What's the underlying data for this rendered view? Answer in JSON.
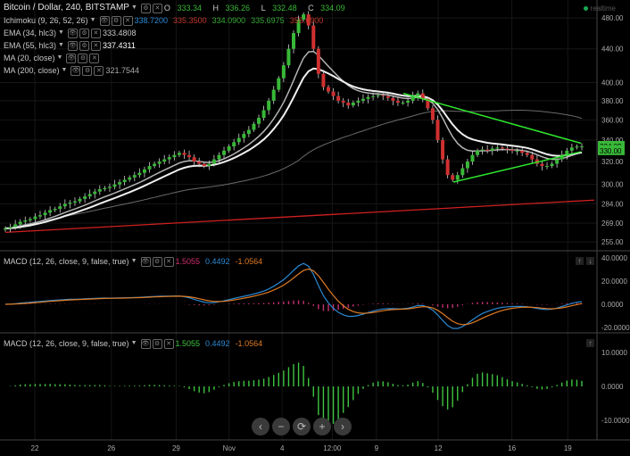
{
  "title": "Bitcoin / Dollar, 240, BITSTAMP",
  "ohlc": [
    {
      "k": "O",
      "v": "333.34"
    },
    {
      "k": "H",
      "v": "336.26"
    },
    {
      "k": "L",
      "v": "332.48"
    },
    {
      "k": "C",
      "v": "334.09"
    }
  ],
  "realtime": "realtime",
  "indicators": [
    {
      "name": "Ichimoku (9, 26, 52, 26)",
      "values": [
        {
          "v": "338.7200",
          "color": "#2b89d4"
        },
        {
          "v": "335.3500",
          "color": "#c0392b"
        },
        {
          "v": "334.0900",
          "color": "#36a836"
        },
        {
          "v": "335.6975",
          "color": "#36a836"
        },
        {
          "v": "355.6900",
          "color": "#c0392b"
        }
      ]
    },
    {
      "name": "EMA (34, hlc3)",
      "values": [
        {
          "v": "333.4808",
          "color": "#c8c8c8"
        }
      ]
    },
    {
      "name": "EMA (55, hlc3)",
      "values": [
        {
          "v": "337.4311",
          "color": "#ffffff"
        }
      ]
    },
    {
      "name": "MA (20, close)",
      "values": []
    },
    {
      "name": "MA (200, close)",
      "values": [
        {
          "v": "321.7544",
          "color": "#aaaaaa"
        }
      ]
    }
  ],
  "price_labels": {
    "last": "334.09",
    "second": "330.00"
  },
  "macd1": {
    "name": "MACD (12, 26, close, 9, false, true)",
    "values": [
      {
        "v": "1.5055",
        "color": "#d0306e"
      },
      {
        "v": "0.4492",
        "color": "#2b89d4"
      },
      {
        "v": "-1.0564",
        "color": "#e07b22"
      }
    ]
  },
  "macd2": {
    "name": "MACD (12, 26, close, 9, false, true)",
    "values": [
      {
        "v": "1.5055",
        "color": "#3fc43f"
      },
      {
        "v": "0.4492",
        "color": "#2b89d4"
      },
      {
        "v": "-1.0564",
        "color": "#e07b22"
      }
    ]
  },
  "colors": {
    "up": "#38b838",
    "down": "#d03030",
    "trend": "#2ee82e",
    "support": "#d02020"
  },
  "chart_data": {
    "type": "candlestick",
    "ylim": [
      250,
      500
    ],
    "y_ticks": [
      "480.00",
      "440.00",
      "400.00",
      "380.00",
      "360.00",
      "340.00",
      "320.00",
      "300.00",
      "284.00",
      "269.00",
      "255.00"
    ],
    "x_ticks": [
      "22",
      "26",
      "29",
      "Nov",
      "4",
      "12:00",
      "9",
      "12",
      "16",
      "19"
    ],
    "close": [
      265,
      266,
      268,
      270,
      271,
      272,
      274,
      275,
      277,
      279,
      280,
      282,
      284,
      285,
      286,
      288,
      290,
      292,
      294,
      296,
      297,
      298,
      300,
      302,
      304,
      306,
      308,
      310,
      313,
      316,
      318,
      320,
      322,
      324,
      326,
      328,
      326,
      324,
      320,
      318,
      316,
      318,
      322,
      326,
      330,
      334,
      338,
      342,
      346,
      350,
      356,
      362,
      370,
      380,
      392,
      405,
      420,
      440,
      460,
      478,
      485,
      470,
      440,
      410,
      395,
      390,
      385,
      380,
      378,
      375,
      378,
      380,
      382,
      384,
      385,
      386,
      385,
      383,
      380,
      378,
      378,
      380,
      385,
      388,
      382,
      372,
      360,
      340,
      322,
      308,
      304,
      308,
      314,
      320,
      326,
      330,
      331,
      330,
      332,
      333,
      332,
      331,
      330,
      330,
      328,
      326,
      322,
      318,
      316,
      316,
      318,
      322,
      326,
      330,
      333,
      334,
      334
    ],
    "ticks_y": [
      "40.0000",
      "20.0000",
      "0.0000",
      "-20.0000"
    ],
    "ticks_y2": [
      "10.0000",
      "0.0000",
      "-10.0000"
    ]
  }
}
